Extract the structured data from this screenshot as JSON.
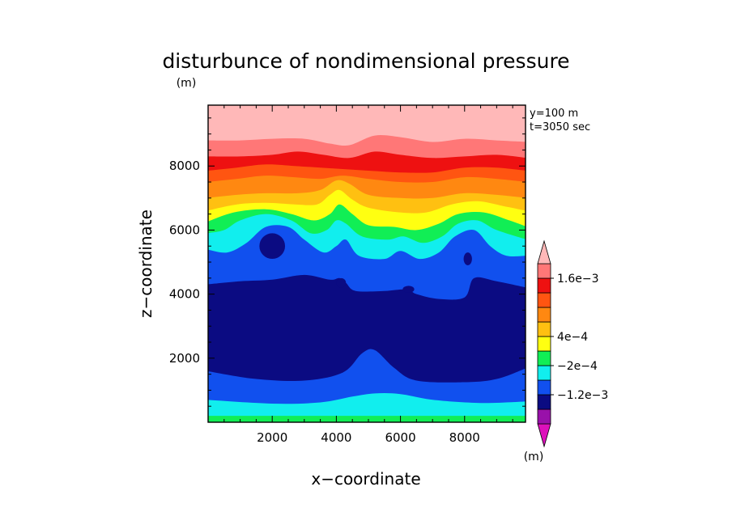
{
  "chart_data": {
    "type": "heatmap",
    "title": "disturbunce of nondimensional pressure",
    "unit_label": "(m)",
    "xlabel": "x−coordinate",
    "ylabel": "z−coordinate",
    "info_lines": [
      "y=100 m",
      "t=3050 sec"
    ],
    "xlim": [
      0,
      9900
    ],
    "ylim": [
      0,
      9900
    ],
    "x_ticks": [
      {
        "value": 2000,
        "label": "2000"
      },
      {
        "value": 4000,
        "label": "4000"
      },
      {
        "value": 6000,
        "label": "6000"
      },
      {
        "value": 8000,
        "label": "8000"
      }
    ],
    "y_ticks": [
      {
        "value": 2000,
        "label": "2000"
      },
      {
        "value": 4000,
        "label": "4000"
      },
      {
        "value": 6000,
        "label": "6000"
      },
      {
        "value": 8000,
        "label": "8000"
      }
    ],
    "colorbar": {
      "unit_label": "(m)",
      "levels_bottom_to_top": [
        {
          "color": "#dd11bb"
        },
        {
          "color": "#9911aa"
        },
        {
          "color": "#0b0b82"
        },
        {
          "color": "#1150ee"
        },
        {
          "color": "#11eeee"
        },
        {
          "color": "#11ee55"
        },
        {
          "color": "#ffff11"
        },
        {
          "color": "#ffc011"
        },
        {
          "color": "#ff8811"
        },
        {
          "color": "#ff5511"
        },
        {
          "color": "#ee1111"
        },
        {
          "color": "#ff7777"
        },
        {
          "color": "#ffb8b8"
        }
      ],
      "labels": [
        {
          "after_level": 2,
          "text": "−1.2e−3"
        },
        {
          "after_level": 4,
          "text": "−2e−4"
        },
        {
          "after_level": 6,
          "text": "4e−4"
        },
        {
          "after_level": 10,
          "text": "1.6e−3"
        }
      ]
    },
    "contour_bands": [
      {
        "level": 0,
        "color": "#11ee55",
        "top": [
          [
            0,
            200
          ],
          [
            9900,
            200
          ]
        ]
      },
      {
        "level": 1,
        "color": "#11eeee",
        "top": [
          [
            0,
            700
          ],
          [
            2000,
            580
          ],
          [
            3500,
            620
          ],
          [
            4500,
            800
          ],
          [
            5200,
            900
          ],
          [
            6000,
            880
          ],
          [
            7000,
            700
          ],
          [
            8500,
            600
          ],
          [
            9900,
            650
          ]
        ]
      },
      {
        "level": 2,
        "color": "#1150ee",
        "top": [
          [
            0,
            1600
          ],
          [
            1500,
            1350
          ],
          [
            3000,
            1300
          ],
          [
            4200,
            1550
          ],
          [
            4800,
            2150
          ],
          [
            5200,
            2250
          ],
          [
            5800,
            1700
          ],
          [
            6500,
            1300
          ],
          [
            8000,
            1250
          ],
          [
            9000,
            1350
          ],
          [
            9900,
            1700
          ]
        ]
      },
      {
        "level": 3,
        "color": "#0b0b82",
        "top": [
          [
            0,
            4300
          ],
          [
            1000,
            4400
          ],
          [
            2000,
            4450
          ],
          [
            3000,
            4600
          ],
          [
            3800,
            4450
          ],
          [
            4100,
            4500
          ],
          [
            4300,
            4350
          ],
          [
            4600,
            4100
          ],
          [
            5500,
            4100
          ],
          [
            6200,
            4150
          ],
          [
            6500,
            4000
          ],
          [
            7200,
            3850
          ],
          [
            8000,
            3900
          ],
          [
            8300,
            4500
          ],
          [
            9000,
            4400
          ],
          [
            9900,
            4200
          ]
        ]
      },
      {
        "level": 4,
        "color": "#1150ee",
        "top": [
          [
            0,
            5400
          ],
          [
            600,
            5300
          ],
          [
            1200,
            5600
          ],
          [
            1800,
            6100
          ],
          [
            2500,
            6100
          ],
          [
            3000,
            5700
          ],
          [
            3600,
            5300
          ],
          [
            4000,
            5500
          ],
          [
            4300,
            5700
          ],
          [
            4700,
            5200
          ],
          [
            5500,
            5100
          ],
          [
            6000,
            5350
          ],
          [
            6600,
            5100
          ],
          [
            7200,
            5300
          ],
          [
            7700,
            5800
          ],
          [
            8300,
            6000
          ],
          [
            8800,
            5500
          ],
          [
            9300,
            5200
          ],
          [
            9900,
            5200
          ]
        ]
      },
      {
        "level": 5,
        "color": "#11eeee",
        "top": [
          [
            0,
            5900
          ],
          [
            500,
            6000
          ],
          [
            1000,
            6300
          ],
          [
            1800,
            6500
          ],
          [
            2600,
            6300
          ],
          [
            3200,
            5900
          ],
          [
            3700,
            6000
          ],
          [
            4000,
            6300
          ],
          [
            4300,
            6200
          ],
          [
            4800,
            5800
          ],
          [
            5600,
            5700
          ],
          [
            6100,
            5800
          ],
          [
            6700,
            5600
          ],
          [
            7300,
            5800
          ],
          [
            7800,
            6200
          ],
          [
            8400,
            6300
          ],
          [
            9000,
            6000
          ],
          [
            9900,
            5700
          ]
        ]
      },
      {
        "level": 6,
        "color": "#11ee55",
        "top": [
          [
            0,
            6250
          ],
          [
            800,
            6550
          ],
          [
            1800,
            6650
          ],
          [
            2600,
            6500
          ],
          [
            3300,
            6300
          ],
          [
            3800,
            6500
          ],
          [
            4100,
            6800
          ],
          [
            4500,
            6500
          ],
          [
            5000,
            6150
          ],
          [
            5800,
            6100
          ],
          [
            6500,
            6000
          ],
          [
            7200,
            6200
          ],
          [
            7800,
            6500
          ],
          [
            8600,
            6550
          ],
          [
            9400,
            6300
          ],
          [
            9900,
            6100
          ]
        ]
      },
      {
        "level": 7,
        "color": "#ffff11",
        "top": [
          [
            0,
            6600
          ],
          [
            900,
            6800
          ],
          [
            1800,
            6850
          ],
          [
            2700,
            6800
          ],
          [
            3400,
            6800
          ],
          [
            3800,
            7100
          ],
          [
            4100,
            7250
          ],
          [
            4500,
            6950
          ],
          [
            5000,
            6700
          ],
          [
            6000,
            6550
          ],
          [
            6800,
            6550
          ],
          [
            7600,
            6800
          ],
          [
            8400,
            6900
          ],
          [
            9200,
            6750
          ],
          [
            9900,
            6600
          ]
        ]
      },
      {
        "level": 8,
        "color": "#ffc011",
        "top": [
          [
            0,
            7000
          ],
          [
            900,
            7100
          ],
          [
            1800,
            7150
          ],
          [
            2800,
            7150
          ],
          [
            3500,
            7250
          ],
          [
            4000,
            7550
          ],
          [
            4400,
            7450
          ],
          [
            5000,
            7100
          ],
          [
            6000,
            7000
          ],
          [
            7000,
            7000
          ],
          [
            8000,
            7150
          ],
          [
            9000,
            7100
          ],
          [
            9900,
            7000
          ]
        ]
      },
      {
        "level": 9,
        "color": "#ff8811",
        "top": [
          [
            0,
            7500
          ],
          [
            900,
            7600
          ],
          [
            1800,
            7700
          ],
          [
            2700,
            7650
          ],
          [
            3500,
            7600
          ],
          [
            4200,
            7700
          ],
          [
            5000,
            7600
          ],
          [
            6000,
            7500
          ],
          [
            7000,
            7500
          ],
          [
            8000,
            7650
          ],
          [
            9000,
            7600
          ],
          [
            9900,
            7500
          ]
        ]
      },
      {
        "level": 10,
        "color": "#ff5511",
        "top": [
          [
            0,
            7850
          ],
          [
            900,
            7950
          ],
          [
            1800,
            8050
          ],
          [
            2700,
            8000
          ],
          [
            3500,
            7950
          ],
          [
            4300,
            7900
          ],
          [
            5100,
            7850
          ],
          [
            6000,
            7800
          ],
          [
            7000,
            7800
          ],
          [
            8000,
            7950
          ],
          [
            9000,
            7950
          ],
          [
            9900,
            7850
          ]
        ]
      },
      {
        "level": 11,
        "color": "#ee1111",
        "top": [
          [
            0,
            8300
          ],
          [
            1000,
            8300
          ],
          [
            2000,
            8350
          ],
          [
            2800,
            8450
          ],
          [
            3600,
            8350
          ],
          [
            4400,
            8250
          ],
          [
            5200,
            8450
          ],
          [
            6000,
            8350
          ],
          [
            7000,
            8250
          ],
          [
            8000,
            8300
          ],
          [
            9000,
            8350
          ],
          [
            9900,
            8250
          ]
        ]
      },
      {
        "level": 12,
        "color": "#ff7777",
        "top": [
          [
            0,
            8800
          ],
          [
            1000,
            8800
          ],
          [
            2000,
            8850
          ],
          [
            3000,
            8850
          ],
          [
            3800,
            8700
          ],
          [
            4400,
            8650
          ],
          [
            5200,
            8950
          ],
          [
            6000,
            8900
          ],
          [
            7000,
            8750
          ],
          [
            8000,
            8850
          ],
          [
            9000,
            8800
          ],
          [
            9900,
            8750
          ]
        ]
      }
    ],
    "closed_contours": [
      {
        "color": "#0b0b82",
        "center": [
          2000,
          5500
        ],
        "rx": 400,
        "ry": 400
      },
      {
        "color": "#0b0b82",
        "center": [
          8100,
          5100
        ],
        "rx": 130,
        "ry": 200
      },
      {
        "color": "#0b0b82",
        "center": [
          4150,
          4350
        ],
        "rx": 150,
        "ry": 150
      },
      {
        "color": "#0b0b82",
        "center": [
          6250,
          4150
        ],
        "rx": 180,
        "ry": 110
      }
    ]
  }
}
